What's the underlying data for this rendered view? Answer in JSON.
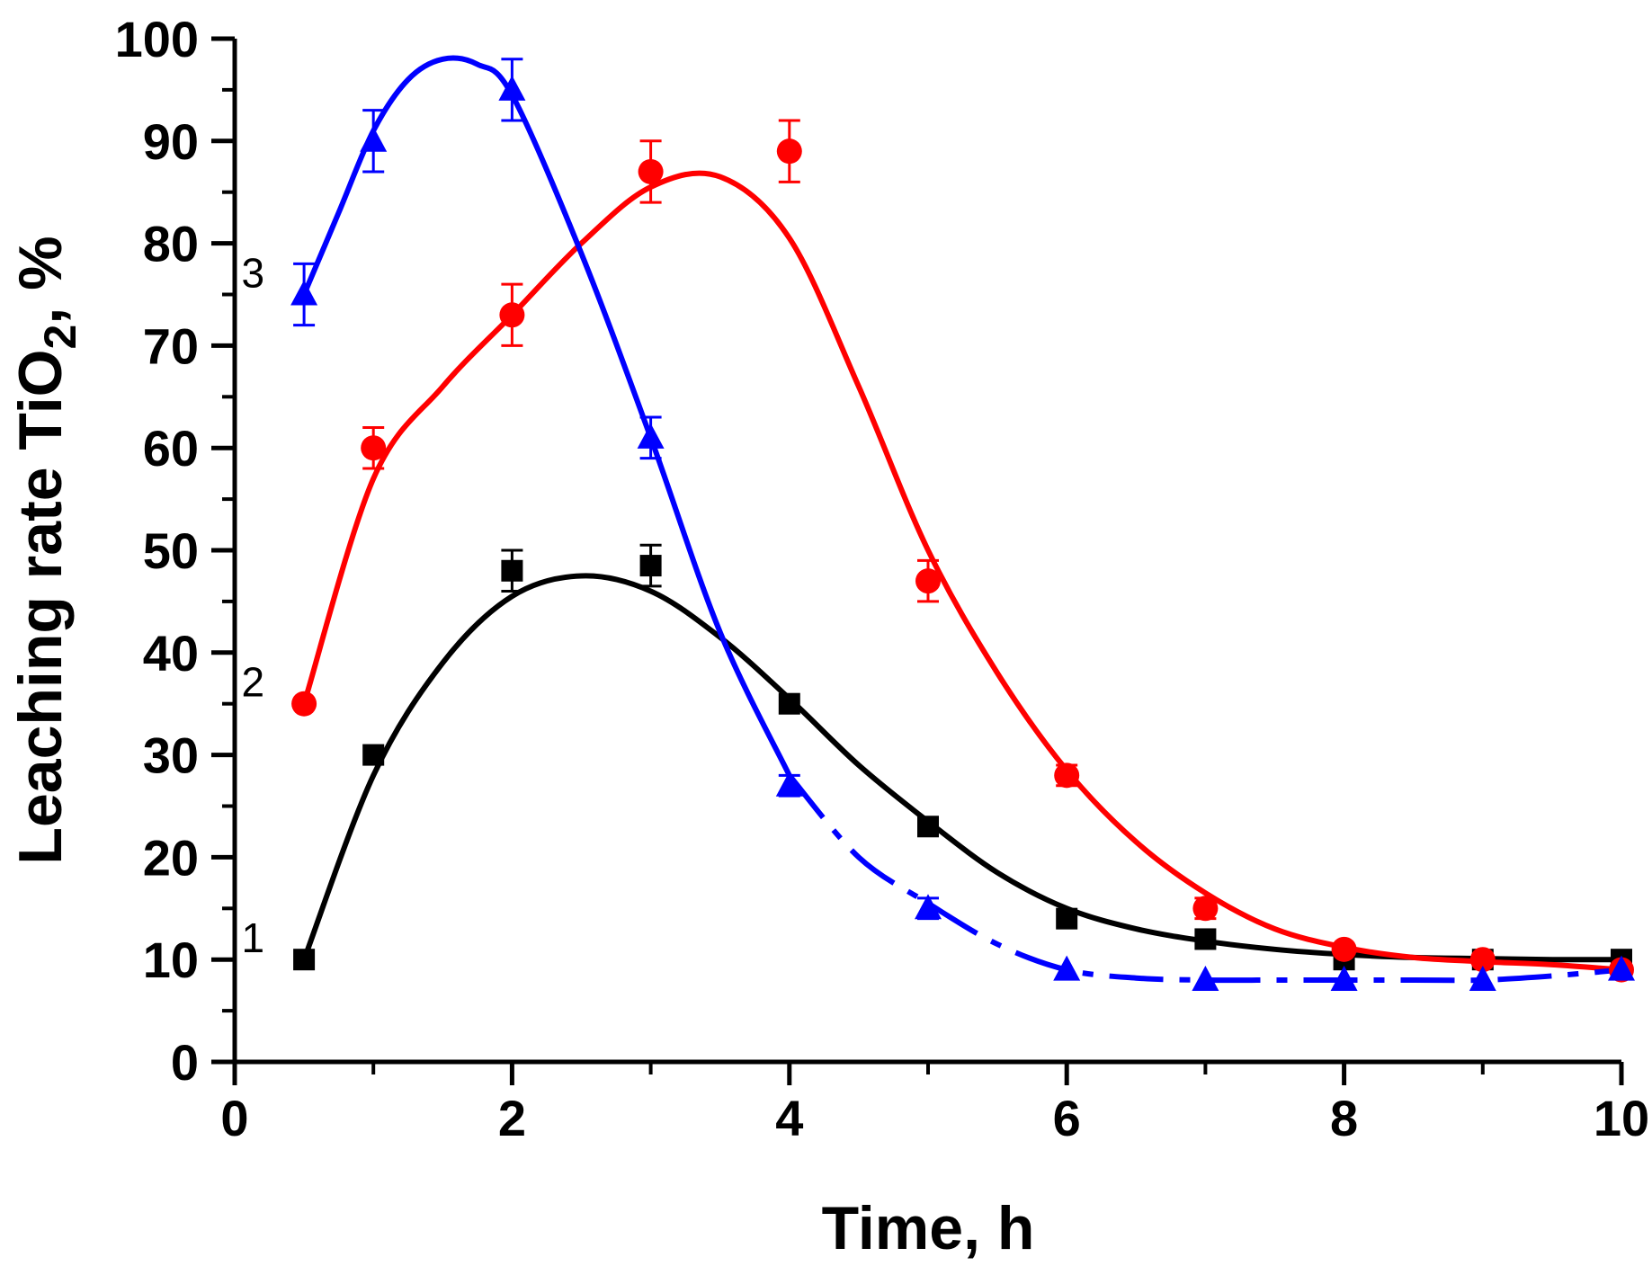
{
  "chart_data": {
    "type": "line",
    "title": "",
    "xlabel": "Time, h",
    "ylabel_main": "Leaching rate TiO",
    "ylabel_sub": "2",
    "ylabel_tail": ", %",
    "xlim": [
      0,
      10
    ],
    "ylim": [
      0,
      100
    ],
    "x_ticks": [
      0,
      2,
      4,
      6,
      8,
      10
    ],
    "x_tick_labels": [
      "0",
      "2",
      "4",
      "6",
      "8",
      "10"
    ],
    "y_ticks": [
      0,
      10,
      20,
      30,
      40,
      50,
      60,
      70,
      80,
      90,
      100
    ],
    "y_tick_labels": [
      "0",
      "10",
      "20",
      "30",
      "40",
      "50",
      "60",
      "70",
      "80",
      "90",
      "100"
    ],
    "grid": false,
    "series": [
      {
        "name": "1",
        "label": "1",
        "color": "#000000",
        "marker": "square",
        "x": [
          0.5,
          1,
          2,
          3,
          4,
          5,
          6,
          7,
          8,
          9,
          10
        ],
        "values": [
          10,
          30,
          48,
          48.5,
          35,
          23,
          14,
          12,
          10,
          10,
          10
        ],
        "errors": [
          0,
          0,
          2,
          2,
          0,
          0,
          0,
          0,
          0,
          0,
          0
        ],
        "fit_x": [
          0.5,
          1,
          1.5,
          2,
          2.5,
          3,
          3.5,
          4,
          4.5,
          5,
          5.5,
          6,
          6.5,
          7,
          7.5,
          8,
          8.5,
          9,
          9.5,
          10
        ],
        "fit_y": [
          10,
          28,
          39,
          45.5,
          47.5,
          46,
          41.5,
          35.5,
          29,
          23.5,
          18.5,
          15,
          13,
          11.8,
          11,
          10.5,
          10.2,
          10.1,
          10,
          10
        ],
        "fit_dashed_from": null
      },
      {
        "name": "2",
        "label": "2",
        "color": "#ff0000",
        "marker": "circle",
        "x": [
          0.5,
          1,
          2,
          3,
          4,
          5,
          6,
          7,
          8,
          9,
          10
        ],
        "values": [
          35,
          60,
          73,
          87,
          89,
          47,
          28,
          15,
          11,
          10,
          9
        ],
        "errors": [
          0,
          2,
          3,
          3,
          3,
          2,
          1,
          1,
          0,
          0,
          0
        ],
        "fit_x": [
          0.5,
          1,
          1.5,
          2,
          2.5,
          3,
          3.5,
          4,
          4.5,
          5,
          5.5,
          6,
          6.5,
          7,
          7.5,
          8,
          8.5,
          9,
          9.5,
          10
        ],
        "fit_y": [
          35,
          57,
          66,
          73,
          80,
          85.5,
          86.5,
          80.5,
          66,
          50,
          38,
          28.5,
          21.5,
          16.5,
          13,
          11.2,
          10.2,
          9.8,
          9.5,
          9
        ],
        "fit_dashed_from": null
      },
      {
        "name": "3",
        "label": "3",
        "color": "#0000ff",
        "marker": "triangle",
        "x": [
          0.5,
          1,
          2,
          3,
          4,
          5,
          6,
          7,
          8,
          9,
          10
        ],
        "values": [
          75,
          90,
          95,
          61,
          27,
          15,
          9,
          8,
          8,
          8,
          9
        ],
        "errors": [
          3,
          3,
          3,
          2,
          1,
          1,
          0,
          0,
          0,
          0,
          0
        ],
        "fit_x": [
          0.5,
          0.75,
          1,
          1.25,
          1.5,
          1.75,
          2,
          2.5,
          3,
          3.5,
          4,
          4.5,
          5,
          5.5,
          6,
          6.5,
          7,
          7.5,
          8,
          8.5,
          9,
          9.5,
          10
        ],
        "fit_y": [
          75,
          83,
          91,
          96,
          98,
          97.5,
          94.5,
          79,
          61,
          42,
          28,
          20,
          15.5,
          11.5,
          9,
          8.2,
          8,
          8,
          8,
          8,
          8,
          8.4,
          9
        ],
        "fit_dashed_from": 4
      }
    ]
  }
}
